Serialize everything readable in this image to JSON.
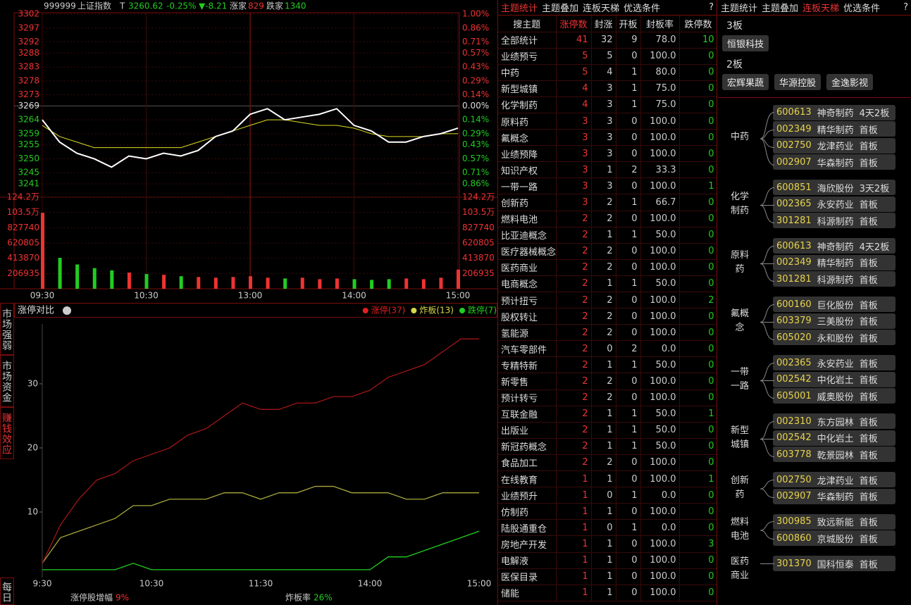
{
  "intraday": {
    "code": "999999",
    "name": "上证指数",
    "flag": "T",
    "price": 3260.62,
    "pct": "-0.25%",
    "change": "▼-8.21",
    "up_label": "涨家",
    "up": 829,
    "down_label": "跌家",
    "down": 1340,
    "price_lim": [
      3241,
      3302
    ],
    "price_ticks": [
      3302,
      3297,
      3292,
      3288,
      3283,
      3278,
      3273,
      3269,
      3264,
      3259,
      3255,
      3250,
      3245,
      3241
    ],
    "pct_ticks": [
      "1.00%",
      "0.86%",
      "0.71%",
      "0.57%",
      "0.43%",
      "0.29%",
      "0.14%",
      "0.00%",
      "0.14%",
      "0.29%",
      "0.43%",
      "0.57%",
      "0.71%",
      "0.86%"
    ],
    "xlim": [
      0,
      240
    ],
    "x": [
      0,
      10,
      20,
      30,
      40,
      50,
      60,
      70,
      80,
      90,
      100,
      110,
      120,
      130,
      140,
      150,
      160,
      170,
      180,
      190,
      200,
      210,
      220,
      230,
      240
    ],
    "price_series": [
      3264,
      3256,
      3252,
      3250,
      3247,
      3251,
      3250,
      3252,
      3251,
      3253,
      3258,
      3260,
      3266,
      3268,
      3264,
      3265,
      3266,
      3268,
      3262,
      3260,
      3256,
      3256,
      3258,
      3259,
      3261
    ],
    "avg_series": [
      3262,
      3258,
      3256,
      3254,
      3254,
      3254,
      3254,
      3254,
      3254,
      3256,
      3258,
      3260,
      3262,
      3264,
      3264,
      3263,
      3262,
      3262,
      3261,
      3259,
      3258,
      3258,
      3258,
      3259,
      3259
    ],
    "volume_lim": [
      0,
      1242000
    ],
    "volume_ticks": [
      {
        "value": 1242000,
        "label": "124.2万"
      },
      {
        "value": 1035000,
        "label": "103.5万"
      },
      827740,
      620805,
      413870,
      206935
    ],
    "volume": [
      1030000,
      420000,
      330000,
      280000,
      250000,
      220000,
      200000,
      190000,
      170000,
      160000,
      150000,
      160000,
      170000,
      150000,
      140000,
      150000,
      130000,
      140000,
      130000,
      120000,
      130000,
      140000,
      130000,
      150000,
      260000
    ],
    "time_ticks": [
      {
        "value": 0,
        "label": "09:30"
      },
      {
        "value": 60,
        "label": "10:30"
      },
      {
        "value": 120,
        "label": "13:00"
      },
      {
        "value": 180,
        "label": "14:00"
      },
      {
        "value": 240,
        "label": "15:00"
      }
    ]
  },
  "tabs": [
    "市场强弱",
    "市场资金",
    "赚钱效应",
    "每日"
  ],
  "limit_chart": {
    "type": "line",
    "title": "涨停对比",
    "xlim": [
      0,
      240
    ],
    "x": [
      0,
      10,
      20,
      30,
      40,
      50,
      60,
      70,
      80,
      90,
      100,
      110,
      120,
      130,
      140,
      150,
      160,
      170,
      180,
      190,
      200,
      210,
      220,
      230,
      240
    ],
    "xticks": [
      {
        "value": 0,
        "label": "9:30"
      },
      {
        "value": 60,
        "label": "10:30"
      },
      {
        "value": 120,
        "label": "11:30"
      },
      {
        "value": 180,
        "label": "14:00"
      },
      {
        "value": 240,
        "label": "15:00"
      }
    ],
    "ylim": [
      0,
      39
    ],
    "yticks": [
      10,
      20,
      30
    ],
    "series": [
      {
        "name": "涨停(37)",
        "color": "#e02020",
        "values": [
          2,
          8,
          12,
          15,
          16,
          18,
          19,
          20,
          22,
          23,
          25,
          27,
          26,
          26,
          27,
          27,
          28,
          28,
          29,
          31,
          32,
          33,
          35,
          37,
          37
        ]
      },
      {
        "name": "炸板(13)",
        "color": "#d8d84a",
        "values": [
          2,
          6,
          7,
          8,
          9,
          11,
          11,
          12,
          12,
          12,
          13,
          13,
          12,
          13,
          13,
          14,
          14,
          13,
          13,
          13,
          12,
          12,
          13,
          13,
          13
        ]
      },
      {
        "name": "跌停(7)",
        "color": "#20d020",
        "values": [
          1,
          1,
          1,
          1,
          1,
          2,
          1,
          1,
          1,
          1,
          1,
          1,
          1,
          1,
          1,
          1,
          1,
          1,
          1,
          3,
          3,
          4,
          5,
          6,
          7
        ]
      }
    ],
    "footer": [
      {
        "label": "涨停股增幅",
        "value": "9%"
      },
      {
        "label": "炸板率",
        "value": "26%"
      }
    ]
  },
  "themes": {
    "tabs": [
      "主题统计",
      "主题叠加",
      "连板天梯",
      "优选条件",
      "?"
    ],
    "columns": [
      "搜主题",
      "涨停数",
      "封涨",
      "开板",
      "封板率",
      "跌停数"
    ],
    "rows": [
      [
        "全部统计",
        41,
        32,
        9,
        "78.0",
        10
      ],
      [
        "业绩预亏",
        5,
        5,
        0,
        "100.0",
        0
      ],
      [
        "中药",
        5,
        4,
        1,
        "80.0",
        0
      ],
      [
        "新型城镇",
        4,
        3,
        1,
        "75.0",
        0
      ],
      [
        "化学制药",
        4,
        3,
        1,
        "75.0",
        0
      ],
      [
        "原料药",
        3,
        3,
        0,
        "100.0",
        0
      ],
      [
        "氟概念",
        3,
        3,
        0,
        "100.0",
        0
      ],
      [
        "业绩预降",
        3,
        3,
        0,
        "100.0",
        0
      ],
      [
        "知识产权",
        3,
        1,
        2,
        "33.3",
        0
      ],
      [
        "一带一路",
        3,
        3,
        0,
        "100.0",
        1
      ],
      [
        "创新药",
        3,
        2,
        1,
        "66.7",
        0
      ],
      [
        "燃料电池",
        2,
        2,
        0,
        "100.0",
        0
      ],
      [
        "比亚迪概念",
        2,
        1,
        1,
        "50.0",
        0
      ],
      [
        "医疗器械概念",
        2,
        2,
        0,
        "100.0",
        0
      ],
      [
        "医药商业",
        2,
        2,
        0,
        "100.0",
        0
      ],
      [
        "电商概念",
        2,
        1,
        1,
        "50.0",
        0
      ],
      [
        "预计扭亏",
        2,
        2,
        0,
        "100.0",
        2
      ],
      [
        "股权转让",
        2,
        2,
        0,
        "100.0",
        0
      ],
      [
        "氢能源",
        2,
        2,
        0,
        "100.0",
        0
      ],
      [
        "汽车零部件",
        2,
        0,
        2,
        "0.0",
        0
      ],
      [
        "专精特新",
        2,
        1,
        1,
        "50.0",
        0
      ],
      [
        "新零售",
        2,
        2,
        0,
        "100.0",
        0
      ],
      [
        "预计转亏",
        2,
        2,
        0,
        "100.0",
        0
      ],
      [
        "互联金融",
        2,
        1,
        1,
        "50.0",
        1
      ],
      [
        "出版业",
        2,
        1,
        1,
        "50.0",
        0
      ],
      [
        "新冠药概念",
        2,
        1,
        1,
        "50.0",
        0
      ],
      [
        "食品加工",
        2,
        2,
        0,
        "100.0",
        0
      ],
      [
        "在线教育",
        1,
        1,
        0,
        "100.0",
        1
      ],
      [
        "业绩预升",
        1,
        0,
        1,
        "0.0",
        0
      ],
      [
        "仿制药",
        1,
        1,
        0,
        "100.0",
        0
      ],
      [
        "陆股通重仓",
        1,
        0,
        1,
        "0.0",
        0
      ],
      [
        "房地产开发",
        1,
        1,
        0,
        "100.0",
        3
      ],
      [
        "电解液",
        1,
        1,
        0,
        "100.0",
        0
      ],
      [
        "医保目录",
        1,
        1,
        0,
        "100.0",
        0
      ],
      [
        "储能",
        1,
        1,
        0,
        "100.0",
        0
      ]
    ]
  },
  "ladder": {
    "tabs": [
      "主题统计",
      "主题叠加",
      "连板天梯",
      "优选条件",
      "?"
    ],
    "levels": [
      {
        "label": "3板",
        "stocks": [
          "恒银科技"
        ]
      },
      {
        "label": "2板",
        "stocks": [
          "宏辉果蔬",
          "华源控股",
          "金逸影视"
        ]
      }
    ],
    "groups": [
      {
        "theme": "中药",
        "stocks": [
          [
            "600613",
            "神奇制药",
            "4天2板"
          ],
          [
            "002349",
            "精华制药",
            "首板"
          ],
          [
            "002750",
            "龙津药业",
            "首板"
          ],
          [
            "002907",
            "华森制药",
            "首板"
          ]
        ]
      },
      {
        "theme": "化学制药",
        "stocks": [
          [
            "600851",
            "海欣股份",
            "3天2板"
          ],
          [
            "002365",
            "永安药业",
            "首板"
          ],
          [
            "301281",
            "科源制药",
            "首板"
          ]
        ]
      },
      {
        "theme": "原料药",
        "stocks": [
          [
            "600613",
            "神奇制药",
            "4天2板"
          ],
          [
            "002349",
            "精华制药",
            "首板"
          ],
          [
            "301281",
            "科源制药",
            "首板"
          ]
        ]
      },
      {
        "theme": "氟概念",
        "stocks": [
          [
            "600160",
            "巨化股份",
            "首板"
          ],
          [
            "603379",
            "三美股份",
            "首板"
          ],
          [
            "605020",
            "永和股份",
            "首板"
          ]
        ]
      },
      {
        "theme": "一带一路",
        "stocks": [
          [
            "002365",
            "永安药业",
            "首板"
          ],
          [
            "002542",
            "中化岩土",
            "首板"
          ],
          [
            "605001",
            "威奥股份",
            "首板"
          ]
        ]
      },
      {
        "theme": "新型城镇",
        "stocks": [
          [
            "002310",
            "东方园林",
            "首板"
          ],
          [
            "002542",
            "中化岩土",
            "首板"
          ],
          [
            "603778",
            "乾景园林",
            "首板"
          ]
        ]
      },
      {
        "theme": "创新药",
        "stocks": [
          [
            "002750",
            "龙津药业",
            "首板"
          ],
          [
            "002907",
            "华森制药",
            "首板"
          ]
        ]
      },
      {
        "theme": "燃料电池",
        "stocks": [
          [
            "300985",
            "致远新能",
            "首板"
          ],
          [
            "600860",
            "京城股份",
            "首板"
          ]
        ]
      },
      {
        "theme": "医药商业",
        "stocks": [
          [
            "301370",
            "国科恒泰",
            "首板"
          ]
        ]
      }
    ]
  }
}
